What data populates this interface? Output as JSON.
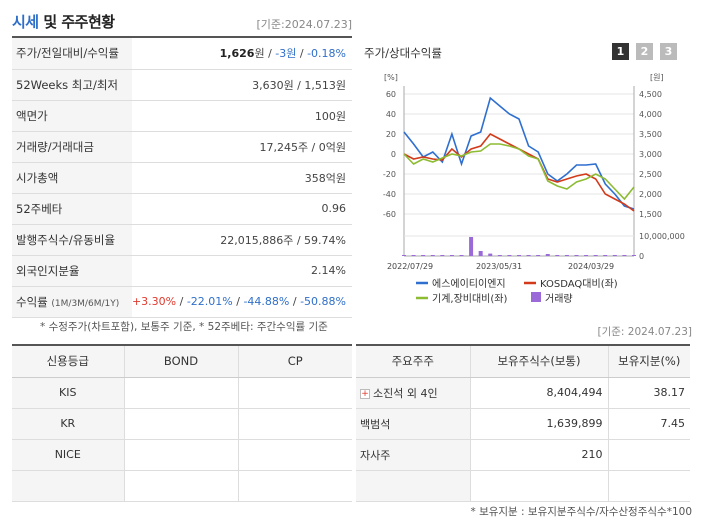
{
  "header": {
    "title_main": "시세",
    "title_rest": " 및 주주현황",
    "date": "[기준:2024.07.23]"
  },
  "price_rows": [
    {
      "label": "주가/전일대비/수익률"
    },
    {
      "label": "52Weeks 최고/최저",
      "value": "3,630원 / 1,513원"
    },
    {
      "label": "액면가",
      "value": "100원"
    },
    {
      "label": "거래량/거래대금",
      "value": "17,245주 / 0억원"
    },
    {
      "label": "시가총액",
      "value": "358억원"
    },
    {
      "label": "52주베타",
      "value": "0.96"
    },
    {
      "label": "발행주식수/유동비율",
      "value": "22,015,886주 / 59.74%"
    },
    {
      "label": "외국인지분율",
      "value": "2.14%"
    },
    {
      "label": "수익률",
      "label_small": "(1M/3M/6M/1Y)"
    }
  ],
  "price_current": {
    "price": "1,626",
    "price_unit": "원 / ",
    "change": "-3원",
    "sep": " / ",
    "rate": "-0.18%"
  },
  "returns": {
    "r1m": "+3.30%",
    "r3m": "-22.01%",
    "r6m": "-44.88%",
    "r1y": "-50.88%",
    "sep": "/ "
  },
  "note1": "* 수정주가(차트포함), 보통주 기준, * 52주베타: 주간수익률 기준",
  "chart_panel": {
    "title": "주가/상대수익률",
    "tabs": [
      "1",
      "2",
      "3"
    ]
  },
  "chart_data": {
    "type": "line",
    "left_axis_unit": "[%]",
    "right_axis_unit": "[원]",
    "y_left_ticks": [
      "60",
      "40",
      "20",
      "0",
      "-20",
      "-40",
      "-60"
    ],
    "y_right_ticks": [
      "4,500",
      "4,000",
      "3,500",
      "3,000",
      "2,500",
      "2,000",
      "1,500"
    ],
    "volume_ticks": [
      "10,000,000",
      "0"
    ],
    "x_labels": [
      "2022/07/29",
      "2023/05/31",
      "2024/03/29"
    ],
    "ylim_left": [
      -60,
      60
    ],
    "ylim_right": [
      1500,
      4500
    ],
    "series": [
      {
        "name": "에스에이티이엔지",
        "color": "#2e6fd0",
        "values": [
          22,
          10,
          -3,
          2,
          -8,
          20,
          -10,
          18,
          22,
          56,
          48,
          40,
          35,
          8,
          2,
          -20,
          -27,
          -20,
          -11,
          -11,
          -10,
          -30,
          -40,
          -52,
          -55
        ]
      },
      {
        "name": "KOSDAQ대비(좌)",
        "color": "#d23a1a",
        "values": [
          0,
          -5,
          -3,
          -5,
          -6,
          5,
          -3,
          5,
          8,
          20,
          15,
          10,
          5,
          0,
          -5,
          -25,
          -28,
          -25,
          -22,
          -20,
          -25,
          -40,
          -45,
          -50,
          -57
        ]
      },
      {
        "name": "기계,장비대비(좌)",
        "color": "#8dbb32",
        "values": [
          0,
          -10,
          -5,
          -8,
          -4,
          0,
          -2,
          2,
          3,
          10,
          10,
          8,
          5,
          -2,
          -5,
          -27,
          -32,
          -35,
          -28,
          -25,
          -20,
          -25,
          -35,
          -45,
          -33
        ]
      }
    ],
    "volume": {
      "name": "거래량",
      "color": "#9a6ad8",
      "values": [
        100000,
        150000,
        100000,
        200000,
        150000,
        120000,
        100000,
        9500000,
        2500000,
        1200000,
        400000,
        300000,
        200000,
        150000,
        100000,
        1000000,
        300000,
        200000,
        150000,
        120000,
        100000,
        100000,
        90000,
        80000,
        70000
      ]
    }
  },
  "credit": {
    "headers": [
      "신용등급",
      "BOND",
      "CP"
    ],
    "rows": [
      "KIS",
      "KR",
      "NICE",
      ""
    ]
  },
  "date2": "[기준: 2024.07.23]",
  "holders": {
    "headers": [
      "주요주주",
      "보유주식수(보통)",
      "보유지분(%)"
    ],
    "rows": [
      {
        "name": "소진석 외 4인",
        "shares": "8,404,494",
        "pct": "38.17",
        "expand": "+"
      },
      {
        "name": "백범석",
        "shares": "1,639,899",
        "pct": "7.45"
      },
      {
        "name": "자사주",
        "shares": "210",
        "pct": ""
      },
      {
        "name": "",
        "shares": "",
        "pct": ""
      }
    ]
  },
  "note2": "* 보유지분 : 보유지분주식수/자수산정주식수*100"
}
